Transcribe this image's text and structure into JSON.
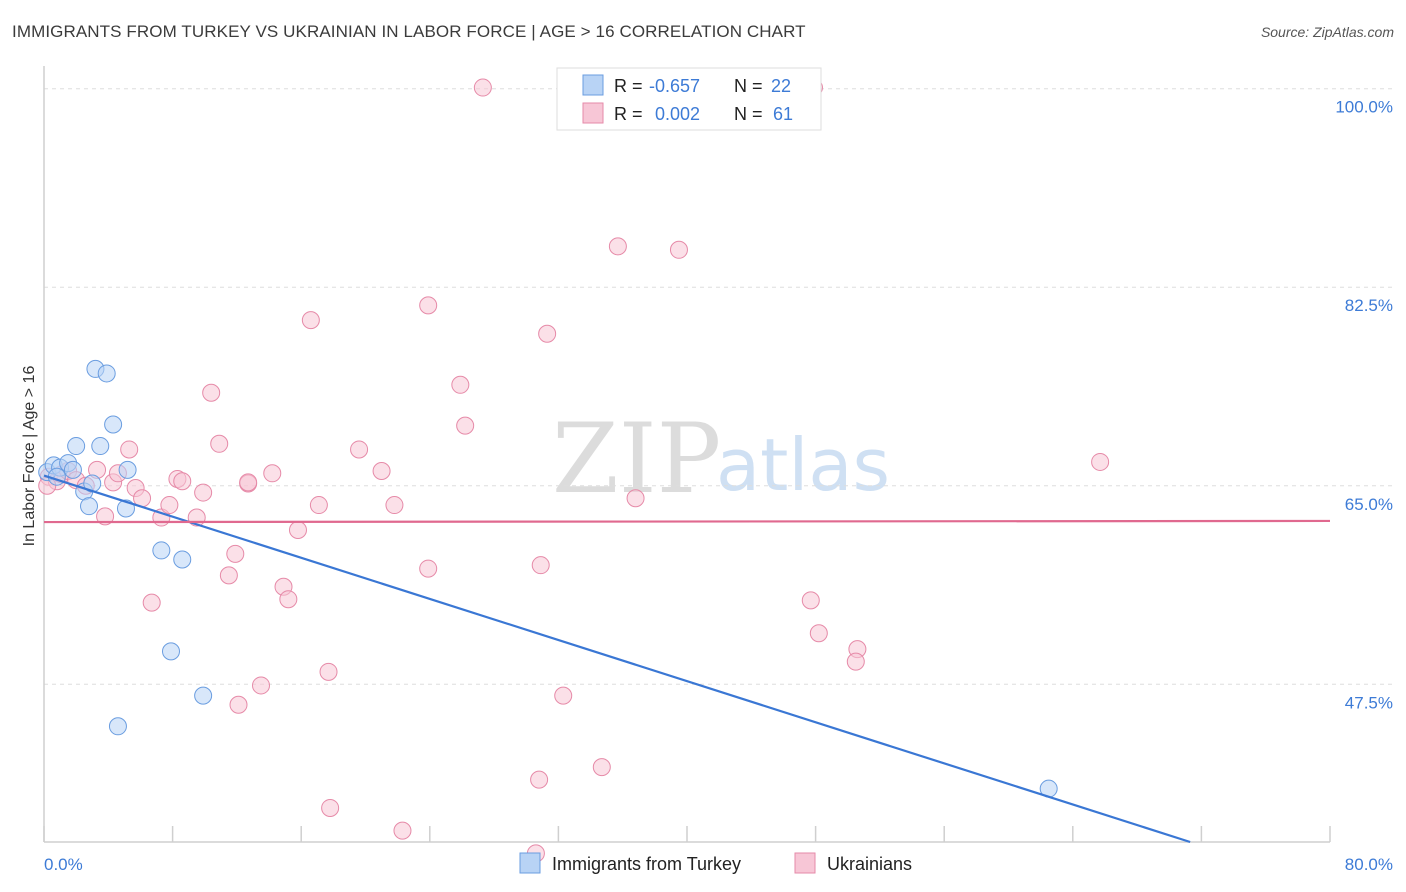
{
  "header": {
    "title": "IMMIGRANTS FROM TURKEY VS UKRAINIAN IN LABOR FORCE | AGE > 16 CORRELATION CHART",
    "source": "Source: ZipAtlas.com"
  },
  "watermark": {
    "zip": "ZIP",
    "atlas": "atlas"
  },
  "legend": {
    "rows": [
      {
        "r_label": "R =",
        "r_value": "-0.657",
        "n_label": "N =",
        "n_value": "22"
      },
      {
        "r_label": "R =",
        "r_value": "0.002",
        "n_label": "N =",
        "n_value": "61"
      }
    ]
  },
  "colors": {
    "blue_fill": "#b8d3f5",
    "blue_stroke": "#6a9de0",
    "blue_line": "#3a77d4",
    "pink_fill": "#f7c6d6",
    "pink_stroke": "#e68aa8",
    "pink_line": "#e0698f",
    "grid": "#dddddd",
    "axis_text": "#3d7bd6"
  },
  "chart_data": {
    "type": "scatter",
    "title": "IMMIGRANTS FROM TURKEY VS UKRAINIAN IN LABOR FORCE | AGE > 16 CORRELATION CHART",
    "xlabel": "",
    "ylabel": "In Labor Force | Age > 16",
    "xlim": [
      0,
      80
    ],
    "ylim": [
      33.6,
      102
    ],
    "x_tick_labels": [
      "0.0%",
      "80.0%"
    ],
    "y_ticks": [
      {
        "value": 100.0,
        "label": "100.0%"
      },
      {
        "value": 82.5,
        "label": "82.5%"
      },
      {
        "value": 65.0,
        "label": "65.0%"
      },
      {
        "value": 47.5,
        "label": "47.5%"
      }
    ],
    "grid": true,
    "legend_position": "top-center",
    "bottom_legend": [
      "Immigrants from Turkey",
      "Ukrainians"
    ],
    "series": [
      {
        "name": "Immigrants from Turkey",
        "color": "blue",
        "R": -0.657,
        "N": 22,
        "trend": {
          "x0": 0,
          "y0": 65.9,
          "x1": 71.3,
          "y1": 33.6
        },
        "points": [
          [
            0.2,
            66.2
          ],
          [
            0.6,
            66.8
          ],
          [
            1.0,
            66.6
          ],
          [
            1.5,
            67.0
          ],
          [
            1.8,
            66.4
          ],
          [
            2.0,
            68.5
          ],
          [
            2.5,
            64.5
          ],
          [
            2.8,
            63.2
          ],
          [
            3.0,
            65.2
          ],
          [
            3.2,
            75.3
          ],
          [
            3.5,
            68.5
          ],
          [
            3.9,
            74.9
          ],
          [
            4.3,
            70.4
          ],
          [
            5.2,
            66.4
          ],
          [
            5.1,
            63.0
          ],
          [
            7.3,
            59.3
          ],
          [
            8.6,
            58.5
          ],
          [
            7.9,
            50.4
          ],
          [
            9.9,
            46.5
          ],
          [
            4.6,
            43.8
          ],
          [
            62.5,
            38.3
          ],
          [
            0.8,
            65.8
          ]
        ]
      },
      {
        "name": "Ukrainians",
        "color": "pink",
        "R": 0.002,
        "N": 61,
        "trend": {
          "x0": 0,
          "y0": 61.8,
          "x1": 80,
          "y1": 61.9
        },
        "points": [
          [
            0.3,
            65.8
          ],
          [
            0.8,
            65.4
          ],
          [
            1.1,
            66.0
          ],
          [
            1.5,
            66.3
          ],
          [
            2.0,
            65.5
          ],
          [
            2.6,
            65.0
          ],
          [
            3.3,
            66.4
          ],
          [
            3.8,
            62.3
          ],
          [
            4.3,
            65.3
          ],
          [
            4.6,
            66.1
          ],
          [
            5.3,
            68.2
          ],
          [
            5.7,
            64.8
          ],
          [
            6.1,
            63.9
          ],
          [
            6.7,
            54.7
          ],
          [
            7.3,
            62.2
          ],
          [
            7.8,
            63.3
          ],
          [
            8.3,
            65.6
          ],
          [
            8.6,
            65.4
          ],
          [
            9.5,
            62.2
          ],
          [
            9.9,
            64.4
          ],
          [
            10.4,
            73.2
          ],
          [
            10.9,
            68.7
          ],
          [
            11.5,
            57.1
          ],
          [
            11.9,
            59.0
          ],
          [
            12.7,
            65.2
          ],
          [
            12.7,
            65.3
          ],
          [
            13.5,
            47.4
          ],
          [
            14.2,
            66.1
          ],
          [
            14.9,
            56.1
          ],
          [
            15.2,
            55.0
          ],
          [
            15.8,
            61.1
          ],
          [
            16.6,
            79.6
          ],
          [
            17.1,
            63.3
          ],
          [
            17.7,
            48.6
          ],
          [
            17.8,
            36.6
          ],
          [
            19.6,
            68.2
          ],
          [
            21.0,
            66.3
          ],
          [
            21.8,
            63.3
          ],
          [
            22.3,
            34.6
          ],
          [
            23.9,
            80.9
          ],
          [
            23.9,
            57.7
          ],
          [
            25.9,
            73.9
          ],
          [
            26.2,
            70.3
          ],
          [
            27.3,
            100.1
          ],
          [
            30.6,
            32.6
          ],
          [
            30.8,
            39.1
          ],
          [
            30.9,
            58.0
          ],
          [
            31.3,
            78.4
          ],
          [
            32.3,
            46.5
          ],
          [
            34.7,
            40.2
          ],
          [
            35.7,
            86.1
          ],
          [
            36.8,
            63.9
          ],
          [
            39.5,
            85.8
          ],
          [
            47.9,
            100.1
          ],
          [
            47.7,
            54.9
          ],
          [
            48.2,
            52.0
          ],
          [
            50.6,
            50.6
          ],
          [
            50.5,
            49.5
          ],
          [
            65.7,
            67.1
          ],
          [
            12.1,
            45.7
          ],
          [
            0.2,
            65.0
          ]
        ]
      }
    ]
  }
}
